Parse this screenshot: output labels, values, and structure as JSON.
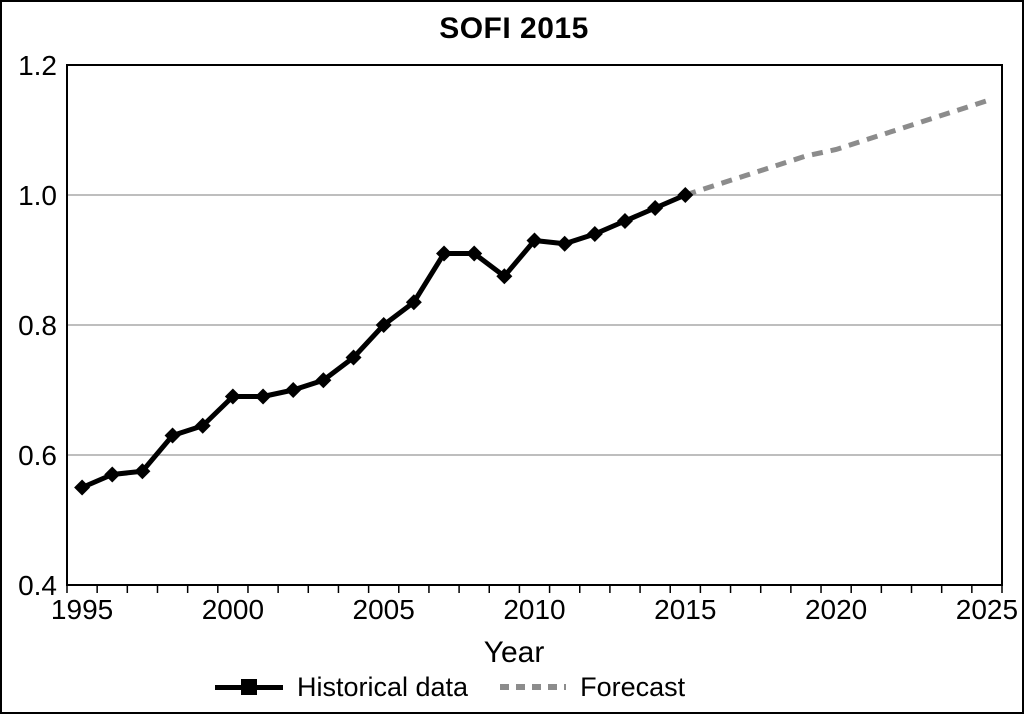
{
  "chart_data": {
    "type": "line",
    "title": "SOFI 2015",
    "xlabel": "Year",
    "ylabel": "",
    "xlim": [
      1994.5,
      2025.5
    ],
    "ylim": [
      0.4,
      1.2
    ],
    "grid": "horizontal",
    "grid_values": [
      1.0,
      0.8,
      0.6
    ],
    "x_minor_tick_step": 1,
    "x_ticks": [
      {
        "v": 1995,
        "label": "1995"
      },
      {
        "v": 2000,
        "label": "2000"
      },
      {
        "v": 2005,
        "label": "2005"
      },
      {
        "v": 2010,
        "label": "2010"
      },
      {
        "v": 2015,
        "label": "2015"
      },
      {
        "v": 2020,
        "label": "2020"
      },
      {
        "v": 2025,
        "label": "2025"
      }
    ],
    "y_ticks": [
      {
        "v": 1.2,
        "label": "1.2"
      },
      {
        "v": 1.0,
        "label": "1.0"
      },
      {
        "v": 0.8,
        "label": "0.8"
      },
      {
        "v": 0.6,
        "label": "0.6"
      },
      {
        "v": 0.4,
        "label": "0.4"
      }
    ],
    "legend_position": "bottom",
    "colors": {
      "historical": "#000000",
      "forecast": "#8c8c8c",
      "gridline": "#a8a8a8",
      "axis": "#000000"
    },
    "series": [
      {
        "name": "Historical data",
        "style": "solid",
        "marker": "diamond",
        "color": "#000000",
        "x": [
          1995,
          1996,
          1997,
          1998,
          1999,
          2000,
          2001,
          2002,
          2003,
          2004,
          2005,
          2006,
          2007,
          2008,
          2009,
          2010,
          2011,
          2012,
          2013,
          2014,
          2015
        ],
        "values": [
          0.55,
          0.57,
          0.575,
          0.63,
          0.645,
          0.69,
          0.69,
          0.7,
          0.715,
          0.75,
          0.8,
          0.835,
          0.91,
          0.91,
          0.875,
          0.93,
          0.925,
          0.94,
          0.96,
          0.98,
          1.0
        ]
      },
      {
        "name": "Forecast",
        "style": "dashed",
        "marker": "none",
        "color": "#8c8c8c",
        "x": [
          2015,
          2016,
          2017,
          2018,
          2019,
          2020,
          2021,
          2022,
          2023,
          2024,
          2025
        ],
        "values": [
          1.0,
          1.015,
          1.03,
          1.045,
          1.06,
          1.07,
          1.085,
          1.1,
          1.115,
          1.13,
          1.145
        ]
      }
    ]
  }
}
